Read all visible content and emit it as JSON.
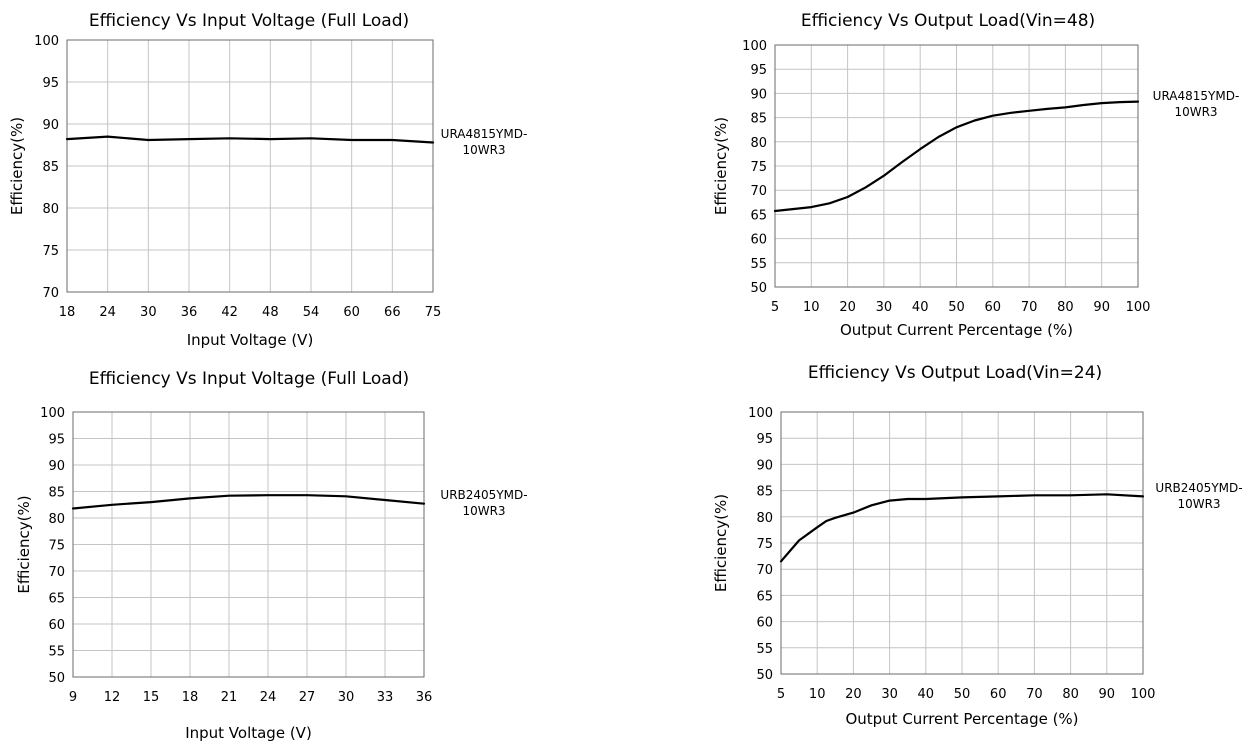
{
  "chart_data": [
    {
      "type": "line",
      "title": "Efficiency Vs Input Voltage (Full Load)",
      "xlabel": "Input Voltage (V)",
      "ylabel": "Efficiency(%)",
      "x_ticks": [
        "18",
        "24",
        "30",
        "36",
        "42",
        "48",
        "54",
        "60",
        "66",
        "75"
      ],
      "y_ticks": [
        "70",
        "75",
        "80",
        "85",
        "90",
        "95",
        "100"
      ],
      "ylim": [
        70,
        100
      ],
      "grid": true,
      "legend": "right",
      "series": [
        {
          "name": "URA4815YMD-10WR3",
          "label_lines": [
            "URA4815YMD-",
            "10WR3"
          ],
          "x": [
            18,
            24,
            30,
            36,
            42,
            48,
            54,
            60,
            66,
            75
          ],
          "y": [
            88.2,
            88.5,
            88.1,
            88.2,
            88.3,
            88.2,
            88.3,
            88.1,
            88.1,
            87.8
          ]
        }
      ]
    },
    {
      "type": "line",
      "title": "Efficiency Vs Output Load(Vin=48)",
      "xlabel": "Output Current Percentage (%)",
      "ylabel": "Efficiency(%)",
      "x_ticks": [
        "5",
        "10",
        "20",
        "30",
        "40",
        "50",
        "60",
        "70",
        "80",
        "90",
        "100"
      ],
      "y_ticks": [
        "50",
        "55",
        "60",
        "65",
        "70",
        "75",
        "80",
        "85",
        "90",
        "95",
        "100"
      ],
      "ylim": [
        50,
        100
      ],
      "grid": true,
      "legend": "right",
      "series": [
        {
          "name": "URA4815YMD-10WR3",
          "label_lines": [
            "URA4815YMD-",
            "10WR3"
          ],
          "x": [
            5,
            10,
            15,
            20,
            25,
            30,
            35,
            40,
            45,
            50,
            55,
            60,
            65,
            70,
            75,
            80,
            85,
            90,
            95,
            100
          ],
          "y": [
            65.7,
            66.5,
            67.3,
            68.6,
            70.6,
            73.0,
            75.8,
            78.5,
            81.0,
            83.0,
            84.4,
            85.4,
            86.0,
            86.4,
            86.8,
            87.1,
            87.6,
            88.0,
            88.2,
            88.3
          ]
        }
      ]
    },
    {
      "type": "line",
      "title": "Efficiency Vs Input Voltage (Full Load)",
      "xlabel": "Input Voltage (V)",
      "ylabel": "Efficiency(%)",
      "x_ticks": [
        "9",
        "12",
        "15",
        "18",
        "21",
        "24",
        "27",
        "30",
        "33",
        "36"
      ],
      "y_ticks": [
        "50",
        "55",
        "60",
        "65",
        "70",
        "75",
        "80",
        "85",
        "90",
        "95",
        "100"
      ],
      "ylim": [
        50,
        100
      ],
      "grid": true,
      "legend": "right",
      "series": [
        {
          "name": "URB2405YMD-10WR3",
          "label_lines": [
            "URB2405YMD-",
            "10WR3"
          ],
          "x": [
            9,
            12,
            15,
            18,
            21,
            24,
            27,
            30,
            33,
            36
          ],
          "y": [
            81.8,
            82.5,
            83.0,
            83.7,
            84.2,
            84.3,
            84.3,
            84.1,
            83.4,
            82.7
          ]
        }
      ]
    },
    {
      "type": "line",
      "title": "Efficiency Vs Output Load(Vin=24)",
      "xlabel": "Output Current Percentage (%)",
      "ylabel": "Efficiency(%)",
      "x_ticks": [
        "5",
        "10",
        "20",
        "30",
        "40",
        "50",
        "60",
        "70",
        "80",
        "90",
        "100"
      ],
      "y_ticks": [
        "50",
        "55",
        "60",
        "65",
        "70",
        "75",
        "80",
        "85",
        "90",
        "95",
        "100"
      ],
      "ylim": [
        50,
        100
      ],
      "grid": true,
      "legend": "right",
      "series": [
        {
          "name": "URB2405YMD-10WR3",
          "label_lines": [
            "URB2405YMD-",
            "10WR3"
          ],
          "x": [
            5,
            7.5,
            10,
            12.5,
            15,
            20,
            25,
            30,
            35,
            40,
            50,
            60,
            70,
            80,
            90,
            100
          ],
          "y": [
            71.5,
            75.5,
            78.0,
            79.2,
            79.8,
            80.8,
            82.2,
            83.1,
            83.4,
            83.4,
            83.7,
            83.9,
            84.1,
            84.1,
            84.3,
            83.9
          ]
        }
      ]
    }
  ]
}
